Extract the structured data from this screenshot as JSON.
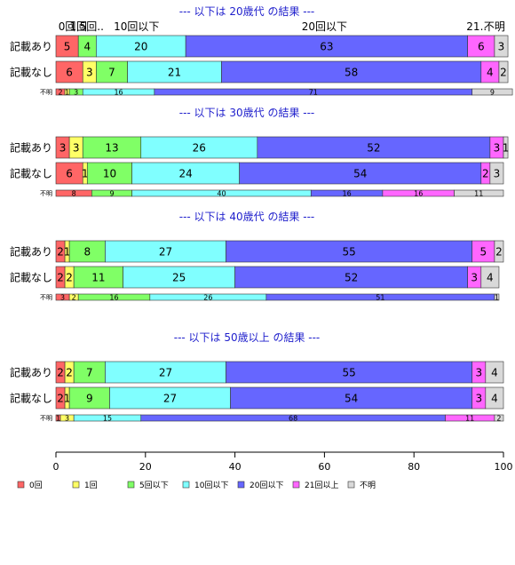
{
  "chart_data": {
    "type": "bar",
    "orientation": "horizontal",
    "stacked": true,
    "xlim": [
      0,
      100
    ],
    "x_ticks": [
      "0",
      "20",
      "40",
      "60",
      "80",
      "100"
    ],
    "categories_legend": [
      {
        "name": "0回",
        "color": "#ff6666"
      },
      {
        "name": "1回",
        "color": "#ffff66"
      },
      {
        "name": "5回以下",
        "color": "#80ff66"
      },
      {
        "name": "10回以下",
        "color": "#80ffff"
      },
      {
        "name": "20回以下",
        "color": "#6666ff"
      },
      {
        "name": "21回以上",
        "color": "#ff66ff"
      },
      {
        "name": "不明",
        "color": "#d9d9d9"
      }
    ],
    "top_labels": [
      {
        "text": "0回",
        "at": 2.5
      },
      {
        "text": "1回",
        "at": 5
      },
      {
        "text": "5回..",
        "at": 8
      },
      {
        "text": "10回以下",
        "at": 18
      },
      {
        "text": "20回以下",
        "at": 60
      },
      {
        "text": "21..",
        "at": 94
      },
      {
        "text": "不明",
        "at": 98
      }
    ],
    "panels": [
      {
        "title": "--- 以下は 20歳代 の結果 ---",
        "rows": [
          {
            "label": "記載あり",
            "values": [
              5,
              0,
              4,
              20,
              63,
              6,
              3
            ]
          },
          {
            "label": "記載なし",
            "values": [
              6,
              3,
              7,
              21,
              58,
              4,
              2
            ]
          },
          {
            "label": "不明",
            "values": [
              2,
              1,
              3,
              16,
              71,
              0,
              9
            ]
          }
        ]
      },
      {
        "title": "--- 以下は 30歳代 の結果 ---",
        "rows": [
          {
            "label": "記載あり",
            "values": [
              3,
              3,
              13,
              26,
              52,
              3,
              1
            ]
          },
          {
            "label": "記載なし",
            "values": [
              6,
              1,
              10,
              24,
              54,
              2,
              3
            ]
          },
          {
            "label": "不明",
            "values": [
              8,
              0,
              9,
              40,
              16,
              16,
              11
            ]
          }
        ]
      },
      {
        "title": "--- 以下は 40歳代 の結果 ---",
        "rows": [
          {
            "label": "記載あり",
            "values": [
              2,
              1,
              8,
              27,
              55,
              5,
              2
            ]
          },
          {
            "label": "記載なし",
            "values": [
              2,
              2,
              11,
              25,
              52,
              3,
              4
            ]
          },
          {
            "label": "不明",
            "values": [
              3,
              2,
              16,
              26,
              51,
              0,
              1
            ]
          }
        ]
      },
      {
        "title": "--- 以下は 50歳以上 の結果 ---",
        "rows": [
          {
            "label": "記載あり",
            "values": [
              2,
              2,
              7,
              27,
              55,
              3,
              4
            ]
          },
          {
            "label": "記載なし",
            "values": [
              2,
              1,
              9,
              27,
              54,
              3,
              4
            ]
          },
          {
            "label": "不明",
            "values": [
              1,
              3,
              0,
              15,
              68,
              11,
              2
            ]
          }
        ]
      }
    ]
  }
}
